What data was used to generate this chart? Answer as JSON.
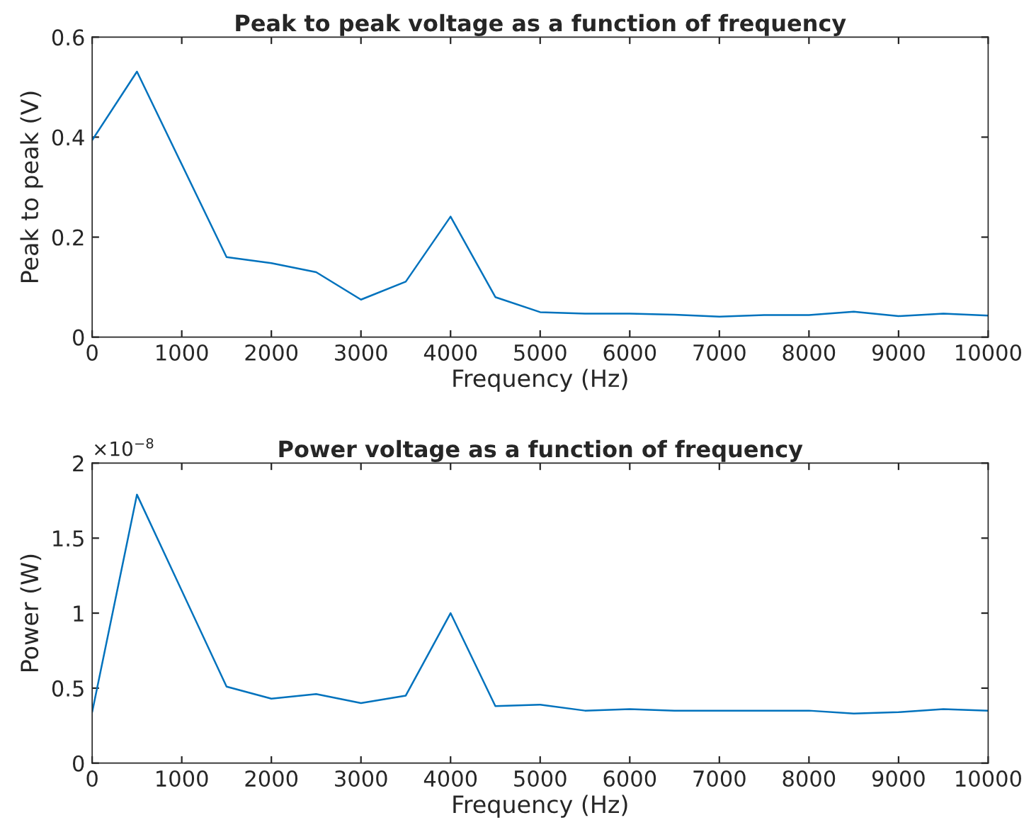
{
  "chart_data": [
    {
      "type": "line",
      "title": "Peak to peak voltage as a function of frequency",
      "xlabel": "Frequency (Hz)",
      "ylabel": "Peak to peak (V)",
      "x": [
        0,
        500,
        1500,
        2000,
        2500,
        3000,
        3500,
        4000,
        4500,
        5000,
        5500,
        6000,
        6500,
        7000,
        7500,
        8000,
        8500,
        9000,
        9500,
        10000
      ],
      "series": [
        {
          "color": "#0072bd",
          "values": [
            0.394,
            0.531,
            0.16,
            0.148,
            0.13,
            0.075,
            0.111,
            0.241,
            0.08,
            0.05,
            0.047,
            0.047,
            0.045,
            0.041,
            0.044,
            0.044,
            0.051,
            0.042,
            0.047,
            0.043
          ]
        }
      ],
      "xlim": [
        0,
        10000
      ],
      "xticks": [
        0,
        1000,
        2000,
        3000,
        4000,
        5000,
        6000,
        7000,
        8000,
        9000,
        10000
      ],
      "ylim": [
        0,
        0.6
      ],
      "yticks": [
        0,
        0.2,
        0.4,
        0.6
      ],
      "grid": false,
      "legend": false
    },
    {
      "type": "line",
      "title": "Power voltage as a function of frequency",
      "xlabel": "Frequency (Hz)",
      "ylabel": "Power (W)",
      "annotations": [
        "×10$^{−8}$"
      ],
      "x": [
        0,
        500,
        1500,
        2000,
        2500,
        3000,
        3500,
        4000,
        4500,
        5000,
        5500,
        6000,
        6500,
        7000,
        7500,
        8000,
        8500,
        9000,
        9500,
        10000
      ],
      "series": [
        {
          "color": "#0072bd",
          "values": [
            0.34,
            1.79,
            0.51,
            0.43,
            0.46,
            0.4,
            0.45,
            1.0,
            0.38,
            0.39,
            0.35,
            0.36,
            0.35,
            0.35,
            0.35,
            0.35,
            0.33,
            0.34,
            0.36,
            0.35
          ]
        }
      ],
      "xlim": [
        0,
        10000
      ],
      "xticks": [
        0,
        1000,
        2000,
        3000,
        4000,
        5000,
        6000,
        7000,
        8000,
        9000,
        10000
      ],
      "ylim": [
        0,
        2
      ],
      "yticks": [
        0,
        0.5,
        1,
        1.5,
        2
      ],
      "grid": false,
      "legend": false
    }
  ]
}
